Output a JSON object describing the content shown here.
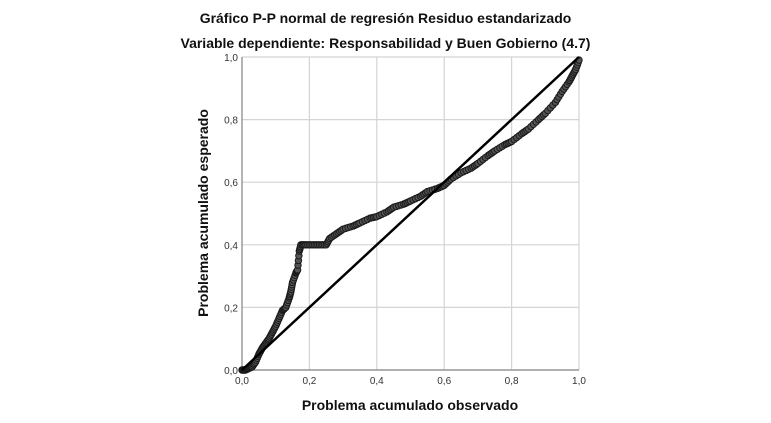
{
  "chart_data": {
    "type": "scatter",
    "title": "Gráfico P-P normal de regresión Residuo estandarizado",
    "subtitle": "Variable dependiente: Responsabilidad y Buen Gobierno (4.7)",
    "xlabel": "Problema acumulado observado",
    "ylabel": "Problema acumulado esperado",
    "xlim": [
      0,
      1
    ],
    "ylim": [
      0,
      1
    ],
    "x_ticks": [
      "0,0",
      "0,2",
      "0,4",
      "0,6",
      "0,8",
      "1,0"
    ],
    "y_ticks": [
      "0,0",
      "0,2",
      "0,4",
      "0,6",
      "0,8",
      "1,0"
    ],
    "grid": true,
    "legend": null,
    "reference_line": {
      "from": [
        0,
        0
      ],
      "to": [
        1,
        1
      ],
      "color": "#000000"
    },
    "marker_color": "#555555",
    "series": [
      {
        "name": "Residuo estandarizado",
        "points": [
          [
            0.0,
            0.0
          ],
          [
            0.01,
            0.0
          ],
          [
            0.02,
            0.005
          ],
          [
            0.03,
            0.01
          ],
          [
            0.04,
            0.025
          ],
          [
            0.05,
            0.05
          ],
          [
            0.06,
            0.07
          ],
          [
            0.07,
            0.085
          ],
          [
            0.08,
            0.1
          ],
          [
            0.09,
            0.12
          ],
          [
            0.1,
            0.14
          ],
          [
            0.11,
            0.165
          ],
          [
            0.12,
            0.19
          ],
          [
            0.13,
            0.2
          ],
          [
            0.14,
            0.23
          ],
          [
            0.145,
            0.25
          ],
          [
            0.15,
            0.28
          ],
          [
            0.16,
            0.31
          ],
          [
            0.165,
            0.32
          ],
          [
            0.17,
            0.38
          ],
          [
            0.175,
            0.4
          ],
          [
            0.19,
            0.4
          ],
          [
            0.21,
            0.4
          ],
          [
            0.23,
            0.4
          ],
          [
            0.25,
            0.4
          ],
          [
            0.26,
            0.42
          ],
          [
            0.28,
            0.435
          ],
          [
            0.3,
            0.45
          ],
          [
            0.33,
            0.46
          ],
          [
            0.35,
            0.47
          ],
          [
            0.38,
            0.485
          ],
          [
            0.4,
            0.49
          ],
          [
            0.43,
            0.505
          ],
          [
            0.45,
            0.52
          ],
          [
            0.48,
            0.53
          ],
          [
            0.5,
            0.54
          ],
          [
            0.53,
            0.555
          ],
          [
            0.55,
            0.57
          ],
          [
            0.58,
            0.58
          ],
          [
            0.6,
            0.59
          ],
          [
            0.62,
            0.61
          ],
          [
            0.65,
            0.63
          ],
          [
            0.68,
            0.645
          ],
          [
            0.7,
            0.66
          ],
          [
            0.73,
            0.685
          ],
          [
            0.75,
            0.7
          ],
          [
            0.78,
            0.72
          ],
          [
            0.8,
            0.73
          ],
          [
            0.83,
            0.755
          ],
          [
            0.85,
            0.77
          ],
          [
            0.88,
            0.8
          ],
          [
            0.9,
            0.82
          ],
          [
            0.93,
            0.855
          ],
          [
            0.95,
            0.89
          ],
          [
            0.97,
            0.92
          ],
          [
            0.98,
            0.94
          ],
          [
            0.99,
            0.96
          ],
          [
            1.0,
            0.99
          ]
        ]
      }
    ]
  }
}
